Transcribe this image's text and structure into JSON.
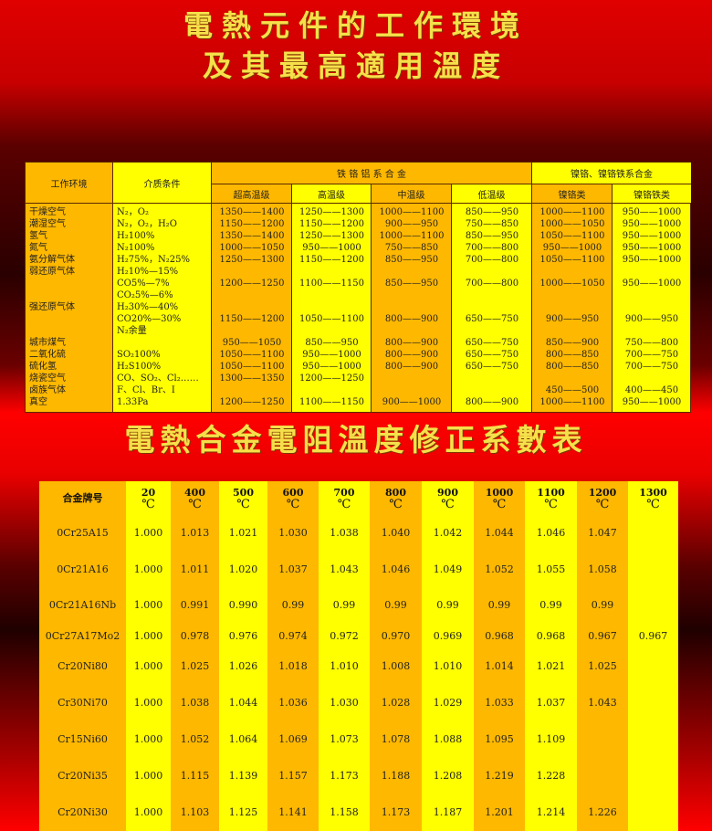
{
  "title1_line1": "電熱元件的工作環境",
  "title1_line2": "及其最高適用溫度",
  "table1": {
    "headers": {
      "env": "工作环境",
      "medium": "介质条件",
      "fecral": "铁 铬 铝 系 合 金",
      "nicr": "镍铬、镍铬铁系合金",
      "sub": [
        "超高温级",
        "高温级",
        "中温级",
        "低温级",
        "镍铬类",
        "镍铬铁类"
      ]
    },
    "lines": [
      {
        "env": "干燥空气",
        "medium": "N₂，O₂",
        "v": [
          "1350——1400",
          "1250——1300",
          "1000——1100",
          "850——950",
          "1000——1100",
          "950——1000"
        ]
      },
      {
        "env": "潮湿空气",
        "medium": "N₂，O₂，H₂O",
        "v": [
          "1150——1200",
          "1150——1200",
          "900——950",
          "750——850",
          "1000——1050",
          "950——1000"
        ]
      },
      {
        "env": "氢气",
        "medium": "H₂100%",
        "v": [
          "1350——1400",
          "1250——1300",
          "1000——1100",
          "850——950",
          "1050——1100",
          "950——1000"
        ]
      },
      {
        "env": "氮气",
        "medium": "N₂100%",
        "v": [
          "1000——1050",
          "950——1000",
          "750——850",
          "700——800",
          "950——1000",
          "950——1000"
        ]
      },
      {
        "env": "氨分解气体",
        "medium": "H₂75%，N₂25%",
        "v": [
          "1250——1300",
          "1150——1200",
          "850——950",
          "700——800",
          "1050——1100",
          "950——1000"
        ]
      },
      {
        "env": "弱还原气体",
        "medium": "H₂10%—15%",
        "v": [
          "",
          "",
          "",
          "",
          "",
          ""
        ]
      },
      {
        "env": "",
        "medium": "CO5%—7%",
        "v": [
          "1200——1250",
          "1100——1150",
          "850——950",
          "700——800",
          "1000——1050",
          "950——1000"
        ]
      },
      {
        "env": "",
        "medium": "CO₂5%—6%",
        "v": [
          "",
          "",
          "",
          "",
          "",
          ""
        ]
      },
      {
        "env": "强还原气体",
        "medium": "H₂30%—40%",
        "v": [
          "",
          "",
          "",
          "",
          "",
          ""
        ]
      },
      {
        "env": "",
        "medium": "CO20%—30%",
        "v": [
          "1150——1200",
          "1050——1100",
          "800——900",
          "650——750",
          "900——950",
          "900——950"
        ]
      },
      {
        "env": "",
        "medium": "N₂余量",
        "v": [
          "",
          "",
          "",
          "",
          "",
          ""
        ]
      },
      {
        "env": "城市煤气",
        "medium": "",
        "v": [
          "950——1050",
          "850——950",
          "800——900",
          "650——750",
          "850——900",
          "750——800"
        ]
      },
      {
        "env": "二氧化硫",
        "medium": "SO₂100%",
        "v": [
          "1050——1100",
          "950——1000",
          "800——900",
          "650——750",
          "800——850",
          "700——750"
        ]
      },
      {
        "env": "硫化氢",
        "medium": "H₂S100%",
        "v": [
          "1050——1100",
          "950——1000",
          "800——900",
          "650——750",
          "800——850",
          "700——750"
        ]
      },
      {
        "env": "烧瓷空气",
        "medium": "CO、SO₂、Cl₂……",
        "v": [
          "1300——1350",
          "1200——1250",
          "",
          "",
          "",
          ""
        ]
      },
      {
        "env": "卤族气体",
        "medium": "F、Cl、Br、I",
        "v": [
          "",
          "",
          "",
          "",
          "450——500",
          "400——450"
        ]
      },
      {
        "env": "真空",
        "medium": "1.33Pa",
        "v": [
          "1200——1250",
          "1100——1150",
          "900——1000",
          "800——900",
          "1000——1100",
          "950——1000"
        ]
      }
    ]
  },
  "title2": "電熱合金電阻溫度修正系數表",
  "table2": {
    "header_name": "合金牌号",
    "unit": "℃",
    "temps": [
      "20",
      "400",
      "500",
      "600",
      "700",
      "800",
      "900",
      "1000",
      "1100",
      "1200",
      "1300"
    ],
    "rows": [
      {
        "name": "0Cr25A15",
        "v": [
          "1.000",
          "1.013",
          "1.021",
          "1.030",
          "1.038",
          "1.040",
          "1.042",
          "1.044",
          "1.046",
          "1.047",
          ""
        ]
      },
      {
        "name": "0Cr21A16",
        "v": [
          "1.000",
          "1.011",
          "1.020",
          "1.037",
          "1.043",
          "1.046",
          "1.049",
          "1.052",
          "1.055",
          "1.058",
          ""
        ]
      },
      {
        "name": "0Cr21A16Nb",
        "v": [
          "1.000",
          "0.991",
          "0.990",
          "0.99",
          "0.99",
          "0.99",
          "0.99",
          "0.99",
          "0.99",
          "0.99",
          ""
        ]
      },
      {
        "name": "0Cr27A17Mo2",
        "v": [
          "1.000",
          "0.978",
          "0.976",
          "0.974",
          "0.972",
          "0.970",
          "0.969",
          "0.968",
          "0.968",
          "0.967",
          "0.967"
        ]
      },
      {
        "name": "Cr20Ni80",
        "v": [
          "1.000",
          "1.025",
          "1.026",
          "1.018",
          "1.010",
          "1.008",
          "1.010",
          "1.014",
          "1.021",
          "1.025",
          ""
        ]
      },
      {
        "name": "Cr30Ni70",
        "v": [
          "1.000",
          "1.038",
          "1.044",
          "1.036",
          "1.030",
          "1.028",
          "1.029",
          "1.033",
          "1.037",
          "1.043",
          ""
        ]
      },
      {
        "name": "Cr15Ni60",
        "v": [
          "1.000",
          "1.052",
          "1.064",
          "1.069",
          "1.073",
          "1.078",
          "1.088",
          "1.095",
          "1.109",
          "",
          ""
        ]
      },
      {
        "name": "Cr20Ni35",
        "v": [
          "1.000",
          "1.115",
          "1.139",
          "1.157",
          "1.173",
          "1.188",
          "1.208",
          "1.219",
          "1.228",
          "",
          ""
        ]
      },
      {
        "name": "Cr20Ni30",
        "v": [
          "1.000",
          "1.103",
          "1.125",
          "1.141",
          "1.158",
          "1.173",
          "1.187",
          "1.201",
          "1.214",
          "1.226",
          ""
        ]
      }
    ]
  },
  "colors": {
    "orange": "#ffb800",
    "yellow": "#ffff00",
    "title": "#f6e04a",
    "background": "#e00000"
  }
}
